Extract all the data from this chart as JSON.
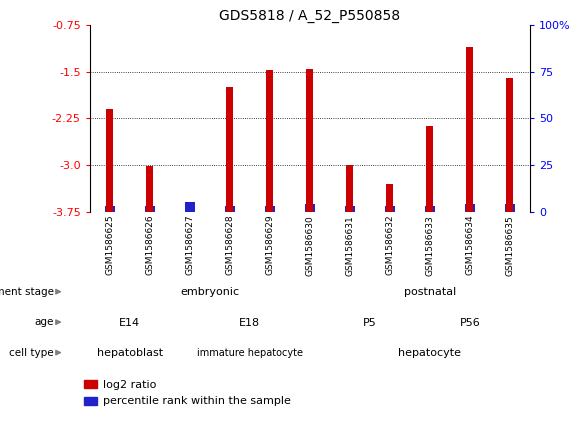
{
  "title": "GDS5818 / A_52_P550858",
  "samples": [
    "GSM1586625",
    "GSM1586626",
    "GSM1586627",
    "GSM1586628",
    "GSM1586629",
    "GSM1586630",
    "GSM1586631",
    "GSM1586632",
    "GSM1586633",
    "GSM1586634",
    "GSM1586635"
  ],
  "log2_ratio": [
    -2.1,
    -3.02,
    -3.75,
    -1.75,
    -1.47,
    -1.45,
    -3.0,
    -3.3,
    -2.37,
    -1.1,
    -1.6
  ],
  "percentile": [
    3,
    3,
    5,
    3,
    3,
    4,
    3,
    3,
    3,
    4,
    4
  ],
  "ylim_left": [
    -3.75,
    -0.75
  ],
  "ylim_right": [
    0,
    100
  ],
  "yticks_left": [
    -3.75,
    -3.0,
    -2.25,
    -1.5,
    -0.75
  ],
  "yticks_right": [
    0,
    25,
    50,
    75,
    100
  ],
  "bar_color_red": "#cc0000",
  "bar_color_blue": "#2222cc",
  "background_color": "#ffffff",
  "xtick_bg_color": "#cccccc",
  "annotation_rows": [
    {
      "label": "development stage",
      "groups": [
        {
          "text": "embryonic",
          "start": 0,
          "end": 5,
          "color": "#99dd99"
        },
        {
          "text": "postnatal",
          "start": 6,
          "end": 10,
          "color": "#44cc44"
        }
      ]
    },
    {
      "label": "age",
      "groups": [
        {
          "text": "E14",
          "start": 0,
          "end": 1,
          "color": "#ccccff"
        },
        {
          "text": "E18",
          "start": 2,
          "end": 5,
          "color": "#9999dd"
        },
        {
          "text": "P5",
          "start": 6,
          "end": 7,
          "color": "#ccccff"
        },
        {
          "text": "P56",
          "start": 8,
          "end": 10,
          "color": "#9999dd"
        }
      ]
    },
    {
      "label": "cell type",
      "groups": [
        {
          "text": "hepatoblast",
          "start": 0,
          "end": 1,
          "color": "#ffcccc"
        },
        {
          "text": "immature hepatocyte",
          "start": 2,
          "end": 5,
          "color": "#ffaaaa"
        },
        {
          "text": "hepatocyte",
          "start": 6,
          "end": 10,
          "color": "#dd6666"
        }
      ]
    }
  ]
}
